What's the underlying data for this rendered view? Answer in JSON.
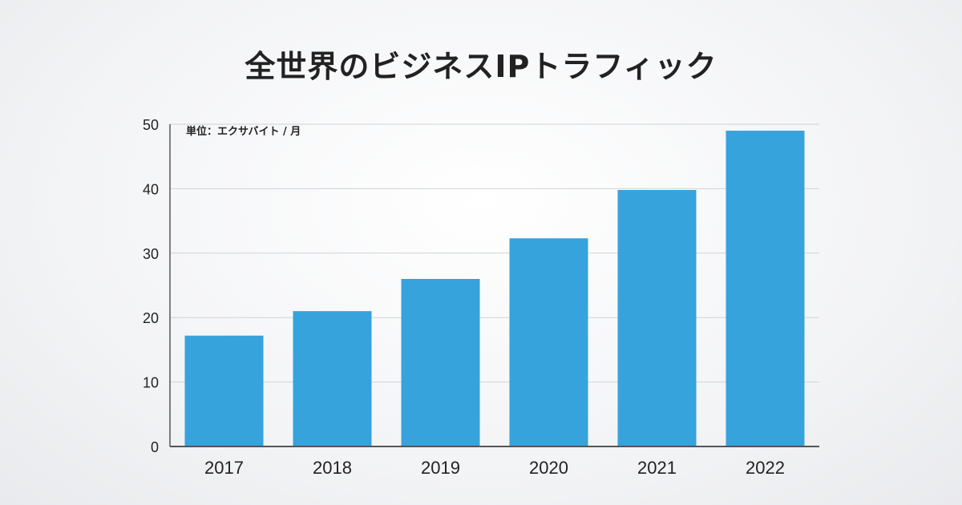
{
  "chart_data": {
    "type": "bar",
    "title": "全世界のビジネスIPトラフィック",
    "unit_label": "単位：エクサバイト / 月",
    "categories": [
      "2017",
      "2018",
      "2019",
      "2020",
      "2021",
      "2022"
    ],
    "values": [
      17.2,
      21.0,
      26.0,
      32.3,
      39.8,
      49.0
    ],
    "ylim": [
      0,
      50
    ],
    "yticks": [
      0,
      10,
      20,
      30,
      40,
      50
    ],
    "grid": true,
    "bar_color": "#36a3dc",
    "grid_color": "#cfd2d6",
    "axis_color": "#555555"
  }
}
